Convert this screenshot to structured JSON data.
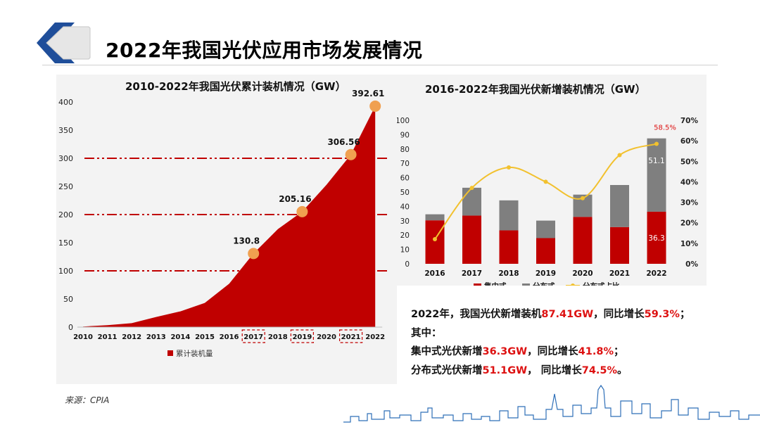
{
  "page": {
    "title": "2022年我国光伏应用市场发展情况",
    "source": "来源：CPIA"
  },
  "colors": {
    "red": "#c00000",
    "grey": "#7f7f7f",
    "gold": "#f2c12e",
    "orange": "#f0a050",
    "dash": "#c00000",
    "highlight": "#dd1111"
  },
  "chart_data": [
    {
      "type": "area",
      "title": "2010-2022年我国光伏累计装机情况（GW）",
      "x": [
        "2010",
        "2011",
        "2012",
        "2013",
        "2014",
        "2015",
        "2016",
        "2017",
        "2018",
        "2019",
        "2020",
        "2021",
        "2022"
      ],
      "series": [
        {
          "name": "累计装机量",
          "values": [
            1,
            3.5,
            7,
            18,
            28,
            43,
            77,
            130.8,
            174,
            205.16,
            253,
            306.56,
            392.61
          ]
        }
      ],
      "ylim": [
        0,
        400
      ],
      "yticks": [
        "0",
        "50",
        "100",
        "150",
        "200",
        "250",
        "300",
        "350",
        "400"
      ],
      "reference_lines": [
        100,
        200,
        300
      ],
      "highlighted_points": [
        {
          "x": "2017",
          "label": "130.8"
        },
        {
          "x": "2019",
          "label": "205.16"
        },
        {
          "x": "2021",
          "label": "306.56"
        },
        {
          "x": "2022",
          "label": "392.61"
        }
      ],
      "boxed_x_labels": [
        "2017",
        "2019",
        "2021"
      ],
      "legend": "bottom",
      "grid": false
    },
    {
      "type": "bar",
      "title": "2016-2022年我国光伏新增装机情况（GW）",
      "categories": [
        "2016",
        "2017",
        "2018",
        "2019",
        "2020",
        "2021",
        "2022"
      ],
      "series": [
        {
          "name": "集中式",
          "values": [
            30.3,
            33.6,
            23.3,
            17.9,
            32.7,
            25.6,
            36.3
          ]
        },
        {
          "name": "分布式",
          "values": [
            4.2,
            19.4,
            20.9,
            12.2,
            15.5,
            29.3,
            51.1
          ]
        },
        {
          "name": "分布式占比",
          "values": [
            12,
            37,
            47,
            40,
            32,
            53,
            58.5
          ],
          "axis": "right"
        }
      ],
      "ylim": [
        0,
        100
      ],
      "yticks": [
        "0",
        "10",
        "20",
        "30",
        "40",
        "50",
        "60",
        "70",
        "80",
        "90",
        "100"
      ],
      "y2lim": [
        0,
        70
      ],
      "y2ticks": [
        "0%",
        "10%",
        "20%",
        "30%",
        "40%",
        "50%",
        "60%",
        "70%"
      ],
      "data_labels": [
        {
          "series": "集中式",
          "x": "2022",
          "label": "36.3"
        },
        {
          "series": "分布式",
          "x": "2022",
          "label": "51.1"
        },
        {
          "series": "分布式占比",
          "x": "2022",
          "label": "58.5%"
        }
      ],
      "legend": "bottom",
      "grid": false
    }
  ],
  "summary": {
    "line1_a": "2022年，我国光伏新增装机",
    "line1_b": "87.41GW",
    "line1_c": "，同比增长",
    "line1_d": "59.3%",
    "line1_e": "；",
    "line2": "其中：",
    "line3_a": "集中式光伏新增",
    "line3_b": "36.3GW",
    "line3_c": "，同比增长",
    "line3_d": "41.8%",
    "line3_e": "；",
    "line4_a": "分布式光伏新增",
    "line4_b": "51.1GW",
    "line4_c": "， 同比增长",
    "line4_d": "74.5%",
    "line4_e": "。"
  }
}
